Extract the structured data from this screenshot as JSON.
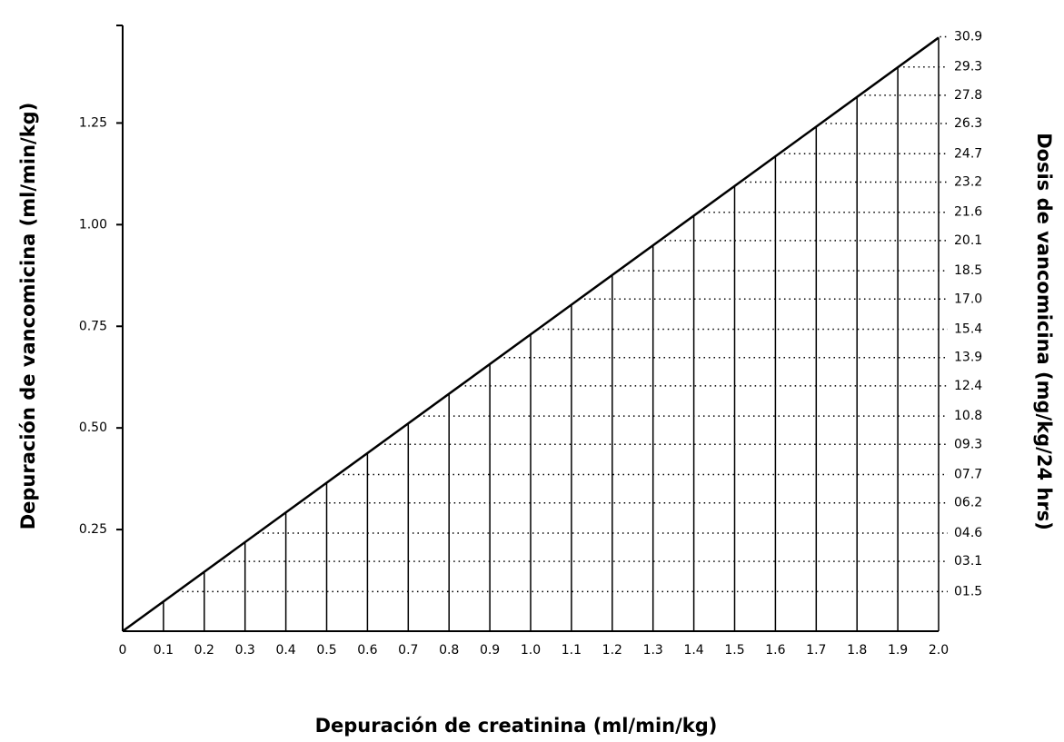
{
  "chart_data": {
    "type": "line",
    "ylabel": "Depuración de vancomicina (ml/min/kg)",
    "y2label": "Dosis de vancomicina (mg/kg/24 hrs)",
    "xlabel": "Depuración de creatinina (ml/min/kg)",
    "x": [
      0,
      2.0
    ],
    "series": [
      {
        "color": "#000000",
        "values": [
          0,
          1.46
        ]
      }
    ],
    "xlim": [
      0,
      2.0
    ],
    "ylim": [
      0,
      1.49
    ],
    "y2lim": [
      -0.6,
      31.5
    ],
    "xticks": [
      0,
      0.1,
      0.2,
      0.3,
      0.4,
      0.5,
      0.6,
      0.7,
      0.8,
      0.9,
      {
        "value": 1,
        "label": "1.0"
      },
      1.1,
      1.2,
      1.3,
      1.4,
      1.5,
      1.6,
      1.7,
      1.8,
      1.9,
      {
        "value": 2,
        "label": "2.0"
      }
    ],
    "yticks": [
      0.25,
      {
        "value": 0.5,
        "label": "0.50"
      },
      0.75,
      {
        "value": 1,
        "label": "1.00"
      },
      1.25
    ],
    "y2ticks": [
      {
        "value": 1.5,
        "label": "01.5"
      },
      {
        "value": 3.1,
        "label": "03.1"
      },
      {
        "value": 4.6,
        "label": "04.6"
      },
      {
        "value": 6.2,
        "label": "06.2"
      },
      {
        "value": 7.7,
        "label": "07.7"
      },
      {
        "value": 9.3,
        "label": "09.3"
      },
      10.8,
      12.4,
      13.9,
      15.4,
      {
        "value": 17,
        "label": "17.0"
      },
      18.5,
      20.1,
      21.6,
      23.2,
      24.7,
      26.3,
      27.8,
      29.3,
      30.9
    ]
  }
}
